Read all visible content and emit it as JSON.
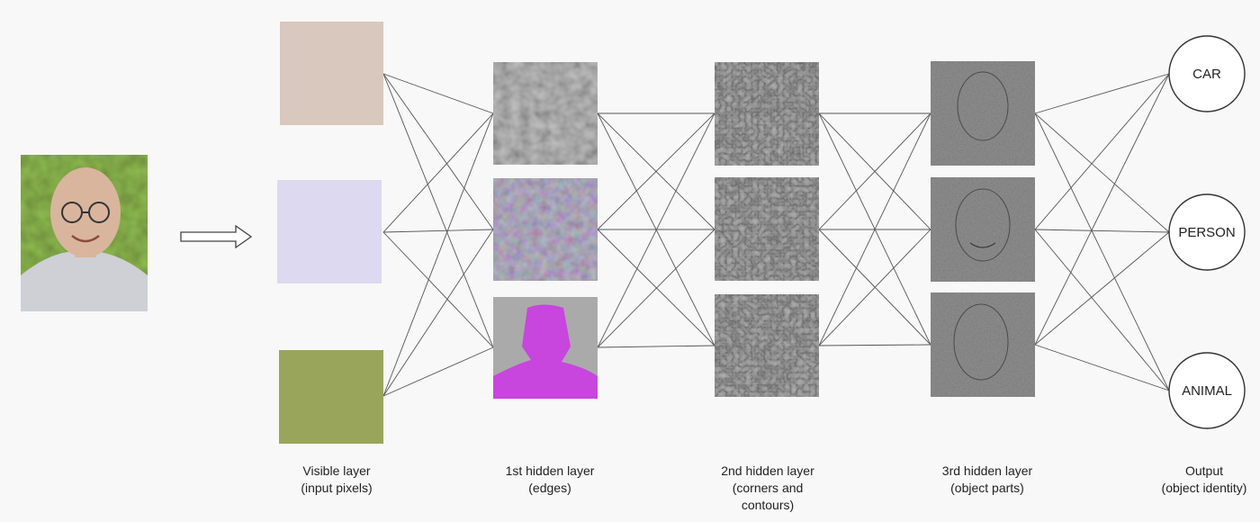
{
  "layers": [
    {
      "key": "visible",
      "label": "Visible layer\n(input pixels)"
    },
    {
      "key": "hidden1",
      "label": "1st hidden layer\n(edges)"
    },
    {
      "key": "hidden2",
      "label": "2nd hidden layer\n(corners and\ncontours)"
    },
    {
      "key": "hidden3",
      "label": "3rd hidden layer\n(object parts)"
    },
    {
      "key": "output",
      "label": "Output\n(object identity)"
    }
  ],
  "input_pixel_colors": [
    "#d9c8bd",
    "#dcd9f0",
    "#99a55b"
  ],
  "output_nodes": [
    "CAR",
    "PERSON",
    "ANIMAL"
  ],
  "colors": {
    "edge_line": "#555555",
    "hidden1_tint": [
      "#8d8d8d",
      "#8c7f92",
      "#c845de"
    ],
    "hidden2_tint": "#8e8e8e",
    "hidden3_tint": "#7a7a7a",
    "photo_background": "#5d7a2a",
    "shirt": "#cfcfd6",
    "skin": "#d9b59d"
  }
}
